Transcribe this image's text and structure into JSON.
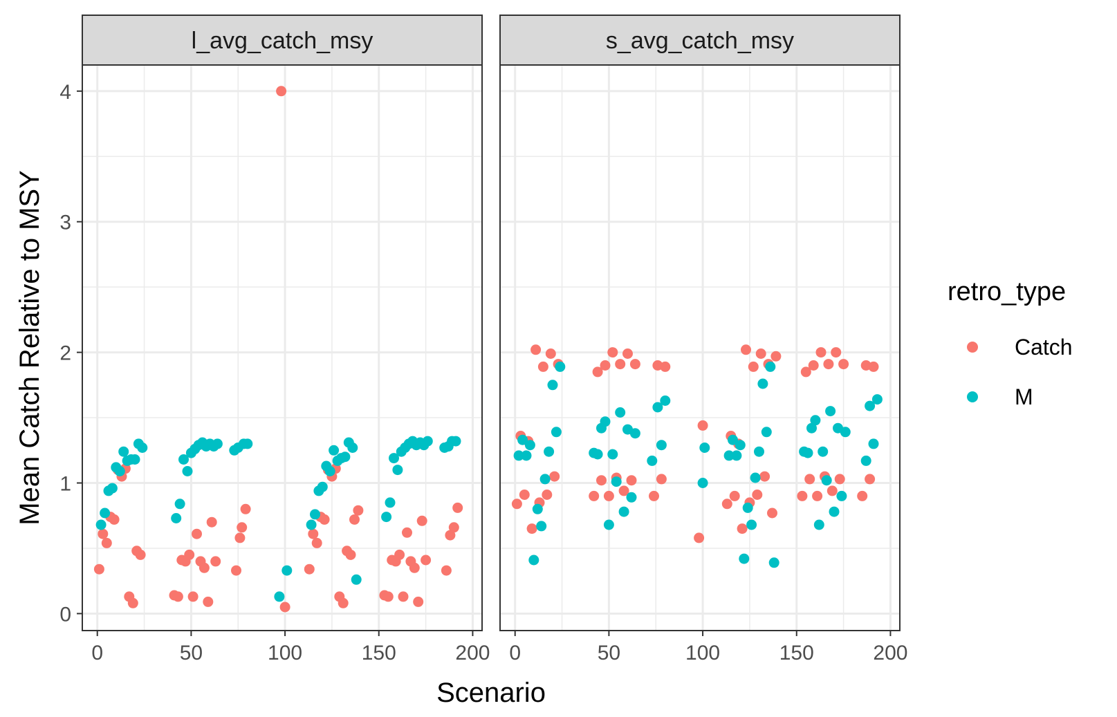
{
  "chart_data": {
    "type": "scatter",
    "xlabel": "Scenario",
    "ylabel": "Mean Catch Relative to MSY",
    "xlim": [
      -8,
      205
    ],
    "ylim": [
      -0.13,
      4.2
    ],
    "x_ticks": [
      0,
      50,
      100,
      150,
      200
    ],
    "y_ticks": [
      0,
      1,
      2,
      3,
      4
    ],
    "grid": true,
    "legend": {
      "title": "retro_type",
      "position": "right",
      "items": [
        {
          "label": "Catch",
          "color": "#F8766D"
        },
        {
          "label": "M",
          "color": "#00BFC4"
        }
      ]
    },
    "panels": [
      {
        "label": "l_avg_catch_msy",
        "series": [
          {
            "name": "Catch",
            "color": "#F8766D",
            "points": [
              [
                1,
                0.34
              ],
              [
                3,
                0.61
              ],
              [
                5,
                0.54
              ],
              [
                7,
                0.74
              ],
              [
                9,
                0.72
              ],
              [
                11,
                1.1
              ],
              [
                13,
                1.05
              ],
              [
                15,
                1.11
              ],
              [
                17,
                0.13
              ],
              [
                19,
                0.08
              ],
              [
                21,
                0.48
              ],
              [
                23,
                0.45
              ],
              [
                41,
                0.14
              ],
              [
                43,
                0.13
              ],
              [
                45,
                0.41
              ],
              [
                47,
                0.4
              ],
              [
                49,
                0.45
              ],
              [
                51,
                0.13
              ],
              [
                53,
                0.61
              ],
              [
                55,
                0.4
              ],
              [
                57,
                0.35
              ],
              [
                59,
                0.09
              ],
              [
                61,
                0.7
              ],
              [
                63,
                0.4
              ],
              [
                74,
                0.33
              ],
              [
                76,
                0.58
              ],
              [
                77,
                0.66
              ],
              [
                79,
                0.8
              ],
              [
                98,
                4.0
              ],
              [
                100,
                0.05
              ],
              [
                113,
                0.34
              ],
              [
                115,
                0.61
              ],
              [
                117,
                0.54
              ],
              [
                119,
                0.74
              ],
              [
                121,
                0.72
              ],
              [
                123,
                1.1
              ],
              [
                125,
                1.05
              ],
              [
                127,
                1.11
              ],
              [
                129,
                0.13
              ],
              [
                131,
                0.08
              ],
              [
                133,
                0.48
              ],
              [
                135,
                0.45
              ],
              [
                137,
                0.72
              ],
              [
                139,
                0.79
              ],
              [
                153,
                0.14
              ],
              [
                155,
                0.13
              ],
              [
                157,
                0.41
              ],
              [
                159,
                0.4
              ],
              [
                161,
                0.45
              ],
              [
                163,
                0.13
              ],
              [
                165,
                0.62
              ],
              [
                167,
                0.4
              ],
              [
                169,
                0.35
              ],
              [
                171,
                0.09
              ],
              [
                173,
                0.71
              ],
              [
                175,
                0.41
              ],
              [
                186,
                0.33
              ],
              [
                188,
                0.6
              ],
              [
                190,
                0.66
              ],
              [
                192,
                0.81
              ]
            ]
          },
          {
            "name": "M",
            "color": "#00BFC4",
            "points": [
              [
                2,
                0.68
              ],
              [
                4,
                0.77
              ],
              [
                6,
                0.94
              ],
              [
                8,
                0.96
              ],
              [
                10,
                1.12
              ],
              [
                12,
                1.09
              ],
              [
                14,
                1.24
              ],
              [
                16,
                1.17
              ],
              [
                18,
                1.18
              ],
              [
                20,
                1.18
              ],
              [
                22,
                1.3
              ],
              [
                24,
                1.27
              ],
              [
                42,
                0.73
              ],
              [
                44,
                0.84
              ],
              [
                46,
                1.18
              ],
              [
                48,
                1.09
              ],
              [
                50,
                1.23
              ],
              [
                52,
                1.26
              ],
              [
                54,
                1.29
              ],
              [
                56,
                1.31
              ],
              [
                58,
                1.28
              ],
              [
                60,
                1.3
              ],
              [
                62,
                1.28
              ],
              [
                64,
                1.3
              ],
              [
                73,
                1.25
              ],
              [
                75,
                1.27
              ],
              [
                78,
                1.3
              ],
              [
                80,
                1.3
              ],
              [
                97,
                0.13
              ],
              [
                101,
                0.33
              ],
              [
                114,
                0.68
              ],
              [
                116,
                0.76
              ],
              [
                118,
                0.94
              ],
              [
                120,
                0.97
              ],
              [
                122,
                1.13
              ],
              [
                124,
                1.09
              ],
              [
                126,
                1.25
              ],
              [
                128,
                1.17
              ],
              [
                130,
                1.19
              ],
              [
                132,
                1.2
              ],
              [
                134,
                1.31
              ],
              [
                136,
                1.27
              ],
              [
                138,
                0.26
              ],
              [
                154,
                0.74
              ],
              [
                156,
                0.85
              ],
              [
                158,
                1.19
              ],
              [
                160,
                1.1
              ],
              [
                162,
                1.24
              ],
              [
                164,
                1.27
              ],
              [
                166,
                1.3
              ],
              [
                168,
                1.32
              ],
              [
                170,
                1.29
              ],
              [
                172,
                1.31
              ],
              [
                174,
                1.29
              ],
              [
                176,
                1.32
              ],
              [
                185,
                1.27
              ],
              [
                187,
                1.28
              ],
              [
                189,
                1.32
              ],
              [
                191,
                1.32
              ]
            ]
          }
        ]
      },
      {
        "label": "s_avg_catch_msy",
        "series": [
          {
            "name": "Catch",
            "color": "#F8766D",
            "points": [
              [
                1,
                0.84
              ],
              [
                3,
                1.36
              ],
              [
                5,
                0.91
              ],
              [
                7,
                1.32
              ],
              [
                9,
                0.65
              ],
              [
                11,
                2.02
              ],
              [
                13,
                0.85
              ],
              [
                15,
                1.89
              ],
              [
                17,
                0.91
              ],
              [
                19,
                1.99
              ],
              [
                21,
                1.05
              ],
              [
                23,
                1.91
              ],
              [
                42,
                0.9
              ],
              [
                44,
                1.85
              ],
              [
                46,
                1.02
              ],
              [
                48,
                1.9
              ],
              [
                50,
                0.9
              ],
              [
                52,
                2.0
              ],
              [
                54,
                1.04
              ],
              [
                56,
                1.91
              ],
              [
                58,
                0.94
              ],
              [
                60,
                1.99
              ],
              [
                62,
                1.02
              ],
              [
                64,
                1.91
              ],
              [
                74,
                0.9
              ],
              [
                76,
                1.9
              ],
              [
                78,
                1.03
              ],
              [
                80,
                1.89
              ],
              [
                98,
                0.58
              ],
              [
                100,
                1.44
              ],
              [
                113,
                0.84
              ],
              [
                115,
                1.36
              ],
              [
                117,
                0.9
              ],
              [
                119,
                1.3
              ],
              [
                121,
                0.65
              ],
              [
                123,
                2.02
              ],
              [
                125,
                0.85
              ],
              [
                127,
                1.89
              ],
              [
                129,
                0.91
              ],
              [
                131,
                1.99
              ],
              [
                133,
                1.05
              ],
              [
                135,
                1.91
              ],
              [
                137,
                0.77
              ],
              [
                139,
                1.97
              ],
              [
                153,
                0.9
              ],
              [
                155,
                1.85
              ],
              [
                157,
                1.03
              ],
              [
                159,
                1.9
              ],
              [
                161,
                0.9
              ],
              [
                163,
                2.0
              ],
              [
                165,
                1.05
              ],
              [
                167,
                1.91
              ],
              [
                169,
                0.94
              ],
              [
                171,
                2.0
              ],
              [
                173,
                1.03
              ],
              [
                175,
                1.91
              ],
              [
                185,
                0.9
              ],
              [
                187,
                1.9
              ],
              [
                189,
                1.03
              ],
              [
                191,
                1.89
              ]
            ]
          },
          {
            "name": "M",
            "color": "#00BFC4",
            "points": [
              [
                2,
                1.21
              ],
              [
                4,
                1.33
              ],
              [
                6,
                1.21
              ],
              [
                8,
                1.29
              ],
              [
                10,
                0.41
              ],
              [
                12,
                0.8
              ],
              [
                14,
                0.67
              ],
              [
                16,
                1.03
              ],
              [
                18,
                1.24
              ],
              [
                20,
                1.75
              ],
              [
                22,
                1.39
              ],
              [
                24,
                1.89
              ],
              [
                42,
                1.23
              ],
              [
                44,
                1.22
              ],
              [
                46,
                1.42
              ],
              [
                48,
                1.47
              ],
              [
                50,
                0.68
              ],
              [
                52,
                1.22
              ],
              [
                54,
                1.01
              ],
              [
                56,
                1.54
              ],
              [
                58,
                0.78
              ],
              [
                60,
                1.41
              ],
              [
                62,
                0.89
              ],
              [
                64,
                1.38
              ],
              [
                73,
                1.17
              ],
              [
                76,
                1.58
              ],
              [
                78,
                1.29
              ],
              [
                80,
                1.63
              ],
              [
                100,
                1.0
              ],
              [
                101,
                1.27
              ],
              [
                114,
                1.21
              ],
              [
                116,
                1.33
              ],
              [
                118,
                1.21
              ],
              [
                120,
                1.29
              ],
              [
                122,
                0.42
              ],
              [
                124,
                0.81
              ],
              [
                126,
                0.68
              ],
              [
                128,
                1.04
              ],
              [
                130,
                1.24
              ],
              [
                132,
                1.76
              ],
              [
                134,
                1.39
              ],
              [
                136,
                1.89
              ],
              [
                138,
                0.39
              ],
              [
                154,
                1.24
              ],
              [
                156,
                1.23
              ],
              [
                158,
                1.42
              ],
              [
                160,
                1.48
              ],
              [
                162,
                0.68
              ],
              [
                164,
                1.24
              ],
              [
                166,
                1.02
              ],
              [
                168,
                1.55
              ],
              [
                170,
                0.78
              ],
              [
                172,
                1.42
              ],
              [
                174,
                0.9
              ],
              [
                176,
                1.39
              ],
              [
                187,
                1.17
              ],
              [
                189,
                1.59
              ],
              [
                191,
                1.3
              ],
              [
                193,
                1.64
              ]
            ]
          }
        ]
      }
    ]
  }
}
